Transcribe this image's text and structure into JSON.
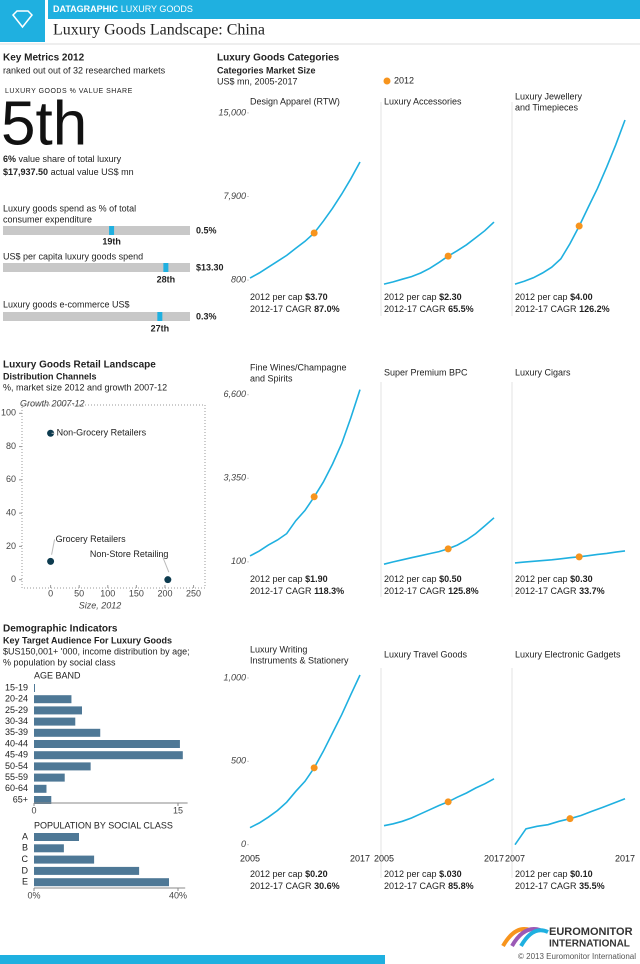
{
  "header": {
    "brand": "DATAGRAPHIC",
    "section": "LUXURY GOODS",
    "title": "Luxury Goods Landscape: China"
  },
  "key_metrics": {
    "title": "Key Metrics 2012",
    "subtitle": "ranked out out of 32 researched markets",
    "share_label": "LUXURY GOODS % VALUE SHARE",
    "rank": "5th",
    "share_value": "6%",
    "share_text": "value share of total luxury",
    "actual_value": "$17,937.50",
    "actual_text": "actual value US$ mn",
    "rank_range": [
      1,
      32
    ],
    "indicators": [
      {
        "label": [
          "Luxury goods spend as % of total",
          "consumer expenditure"
        ],
        "value": "0.5%",
        "rank": 19,
        "rank_label": "19th"
      },
      {
        "label": [
          "US$ per capita luxury goods spend"
        ],
        "value": "$13.30",
        "rank": 28,
        "rank_label": "28th"
      },
      {
        "label": [
          "Luxury goods e-commerce US$"
        ],
        "value": "0.3%",
        "rank": 27,
        "rank_label": "27th"
      }
    ]
  },
  "categories_section": {
    "title": "Luxury Goods Categories",
    "subtitle": "Categories Market Size",
    "unit": "US$ mn, 2005-2017",
    "legend": 2012
  },
  "retail_section": {
    "title": "Luxury Goods Retail Landscape",
    "subtitle": "Distribution Channels",
    "note": "%, market size 2012 and growth 2007-12"
  },
  "demographic_section": {
    "title": "Demographic Indicators",
    "subtitle": "Key Target Audience For Luxury Goods",
    "note": [
      "$US150,001+ '000, income distribution by age;",
      "% population by social class"
    ]
  },
  "chart_data": [
    {
      "type": "scatter",
      "x_label": "Size, 2012",
      "y_label": "Growth 2007-12",
      "xlim": [
        -50,
        270
      ],
      "ylim": [
        -5,
        105
      ],
      "xticks": [
        0,
        50,
        100,
        150,
        200,
        250
      ],
      "yticks": [
        0,
        20,
        40,
        60,
        80,
        100
      ],
      "color": "#0d3b4f",
      "series": [
        {
          "name": "Non-Grocery Retailers",
          "x": [
            0
          ],
          "values": [
            88
          ]
        },
        {
          "name": "Grocery Retailers",
          "x": [
            0
          ],
          "values": [
            11
          ]
        },
        {
          "name": "Non-Store Retailing",
          "x": [
            205
          ],
          "values": [
            0
          ]
        }
      ]
    },
    {
      "type": "hbar",
      "title": "AGE BAND",
      "categories": [
        "15-19",
        "20-24",
        "25-29",
        "30-34",
        "35-39",
        "40-44",
        "45-49",
        "50-54",
        "55-59",
        "60-64",
        "65+"
      ],
      "values": [
        0.1,
        3.9,
        5.0,
        4.3,
        6.9,
        15.2,
        15.5,
        5.9,
        3.2,
        1.3,
        1.8
      ],
      "xlim": [
        0,
        16
      ],
      "xticks": [
        0,
        15
      ],
      "color": "#4e7896"
    },
    {
      "type": "hbar",
      "title": "POPULATION BY SOCIAL CLASS",
      "categories": [
        "A",
        "B",
        "C",
        "D",
        "E"
      ],
      "values": [
        12.5,
        8.3,
        16.7,
        29.2,
        37.5
      ],
      "xlim": [
        0,
        42
      ],
      "xticks": [
        {
          "value": 0,
          "label": "0%"
        },
        {
          "value": 40,
          "label": "40%"
        }
      ],
      "color": "#4e7896"
    },
    {
      "type": "line",
      "title": [
        "Design Apparel (RTW)"
      ],
      "x": [
        2005,
        2006,
        2007,
        2008,
        2009,
        2010,
        2011,
        2012,
        2013,
        2014,
        2015,
        2016,
        2017
      ],
      "values": [
        970,
        1400,
        1900,
        2400,
        2900,
        3500,
        4100,
        4800,
        5800,
        6900,
        8100,
        9400,
        10830
      ],
      "xlim": [
        2005,
        2017
      ],
      "ylim": [
        300,
        15500
      ],
      "yticks": [
        800,
        {
          "value": 7900,
          "label": "7,900"
        },
        {
          "value": 15000,
          "label": "15,000"
        }
      ],
      "per_cap_label": "2012 per cap",
      "per_cap": "$3.70",
      "cagr_label": "2012-17 CAGR",
      "cagr": "87.0%",
      "color": "#1fb0e0",
      "highlight_color": "#f7941d"
    },
    {
      "type": "line",
      "title": [
        "Luxury Accessories"
      ],
      "x": [
        2005,
        2006,
        2007,
        2008,
        2009,
        2010,
        2011,
        2012,
        2013,
        2014,
        2015,
        2016,
        2017
      ],
      "values": [
        460,
        650,
        880,
        1100,
        1400,
        1800,
        2300,
        2840,
        3300,
        3800,
        4400,
        5000,
        5730
      ],
      "xlim": [
        2005,
        2017
      ],
      "ylim": [
        300,
        15500
      ],
      "per_cap_label": "2012 per cap",
      "per_cap": "$2.30",
      "cagr_label": "2012-17 CAGR",
      "cagr": "65.5%",
      "color": "#1fb0e0",
      "highlight_color": "#f7941d"
    },
    {
      "type": "line",
      "title": [
        "Luxury Jewellery",
        "and Timepieces"
      ],
      "x": [
        2005,
        2006,
        2007,
        2008,
        2009,
        2010,
        2011,
        2012,
        2013,
        2014,
        2015,
        2016,
        2017
      ],
      "values": [
        460,
        700,
        1000,
        1400,
        1900,
        2600,
        3900,
        5390,
        7000,
        8600,
        10400,
        12300,
        14400
      ],
      "xlim": [
        2005,
        2017
      ],
      "ylim": [
        300,
        15500
      ],
      "per_cap_label": "2012 per cap",
      "per_cap": "$4.00",
      "cagr_label": "2012-17 CAGR",
      "cagr": "126.2%",
      "color": "#1fb0e0",
      "highlight_color": "#f7941d"
    },
    {
      "type": "line",
      "title": [
        "Fine Wines/Champagne",
        "and Spirits"
      ],
      "x": [
        2005,
        2006,
        2007,
        2008,
        2009,
        2010,
        2011,
        2012,
        2013,
        2014,
        2015,
        2016,
        2017
      ],
      "values": [
        333,
        520,
        750,
        950,
        1200,
        1700,
        2100,
        2630,
        3200,
        3900,
        4700,
        5700,
        6800
      ],
      "xlim": [
        2005,
        2017
      ],
      "ylim": [
        -100,
        6900
      ],
      "yticks": [
        100,
        {
          "value": 3350,
          "label": "3,350"
        },
        {
          "value": 6600,
          "label": "6,600"
        }
      ],
      "per_cap_label": "2012 per cap",
      "per_cap": "$1.90",
      "cagr_label": "2012-17 CAGR",
      "cagr": "118.3%",
      "color": "#1fb0e0",
      "highlight_color": "#f7941d"
    },
    {
      "type": "line",
      "title": [
        "Super Premium BPC"
      ],
      "x": [
        2005,
        2006,
        2007,
        2008,
        2009,
        2010,
        2011,
        2012,
        2013,
        2014,
        2015,
        2016,
        2017
      ],
      "values": [
        10,
        100,
        180,
        260,
        340,
        420,
        500,
        606,
        750,
        950,
        1200,
        1500,
        1813
      ],
      "xlim": [
        2005,
        2017
      ],
      "ylim": [
        -100,
        6900
      ],
      "per_cap_label": "2012 per cap",
      "per_cap": "$0.50",
      "cagr_label": "2012-17 CAGR",
      "cagr": "125.8%",
      "color": "#1fb0e0",
      "highlight_color": "#f7941d"
    },
    {
      "type": "line",
      "title": [
        "Luxury Cigars"
      ],
      "x": [
        2005,
        2006,
        2007,
        2008,
        2009,
        2010,
        2011,
        2012,
        2013,
        2014,
        2015,
        2016,
        2017
      ],
      "values": [
        60,
        90,
        120,
        150,
        180,
        220,
        260,
        295,
        340,
        390,
        430,
        480,
        528
      ],
      "xlim": [
        2005,
        2017
      ],
      "ylim": [
        -100,
        6900
      ],
      "per_cap_label": "2012 per cap",
      "per_cap": "$0.30",
      "cagr_label": "2012-17 CAGR",
      "cagr": "33.7%",
      "color": "#1fb0e0",
      "highlight_color": "#f7941d"
    },
    {
      "type": "line",
      "title": [
        "Luxury Writing",
        "Instruments & Stationery"
      ],
      "x": [
        2005,
        2006,
        2007,
        2008,
        2009,
        2010,
        2011,
        2012,
        2013,
        2014,
        2015,
        2016,
        2017
      ],
      "values": [
        102,
        130,
        165,
        205,
        255,
        320,
        380,
        461,
        560,
        670,
        780,
        900,
        1018
      ],
      "xlim": [
        2005,
        2017
      ],
      "ylim": [
        -20,
        1030
      ],
      "yticks": [
        0,
        500,
        {
          "value": 1000,
          "label": "1,000"
        }
      ],
      "xticks": [
        2005,
        2017
      ],
      "per_cap_label": "2012 per cap",
      "per_cap": "$0.20",
      "cagr_label": "2012-17 CAGR",
      "cagr": "30.6%",
      "color": "#1fb0e0",
      "highlight_color": "#f7941d"
    },
    {
      "type": "line",
      "title": [
        "Luxury Travel Goods"
      ],
      "x": [
        2005,
        2006,
        2007,
        2008,
        2009,
        2010,
        2011,
        2012,
        2013,
        2014,
        2015,
        2016,
        2017
      ],
      "values": [
        114,
        125,
        140,
        160,
        185,
        210,
        235,
        257,
        285,
        310,
        340,
        365,
        395
      ],
      "xlim": [
        2005,
        2017
      ],
      "ylim": [
        -20,
        1030
      ],
      "xticks": [
        2005,
        2017
      ],
      "per_cap_label": "2012 per cap",
      "per_cap": "$.030",
      "cagr_label": "2012-17 CAGR",
      "cagr": "85.8%",
      "color": "#1fb0e0",
      "highlight_color": "#f7941d"
    },
    {
      "type": "line",
      "title": [
        "Luxury Electronic Gadgets"
      ],
      "x": [
        2007,
        2008,
        2009,
        2010,
        2011,
        2012,
        2013,
        2014,
        2015,
        2016,
        2017
      ],
      "values": [
        0,
        95,
        110,
        120,
        140,
        156,
        175,
        200,
        225,
        250,
        275
      ],
      "xlim": [
        2007,
        2017
      ],
      "ylim": [
        -20,
        1030
      ],
      "xticks": [
        2007,
        2017
      ],
      "per_cap_label": "2012 per cap",
      "per_cap": "$0.10",
      "cagr_label": "2012-17 CAGR",
      "cagr": "35.5%",
      "color": "#1fb0e0",
      "highlight_color": "#f7941d"
    }
  ],
  "footer": {
    "logo": [
      "EUROMONITOR",
      "INTERNATIONAL"
    ],
    "copyright": "© 2013 Euromonitor International"
  }
}
